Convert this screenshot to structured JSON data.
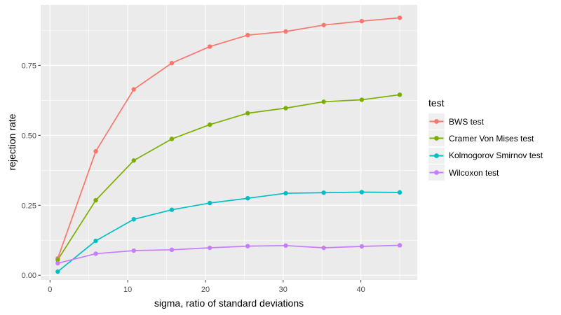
{
  "chart_data": {
    "type": "line",
    "title": "",
    "xlabel": "sigma, ratio of standard deviations",
    "ylabel": "rejection rate",
    "x": [
      1,
      5.89,
      10.78,
      15.67,
      20.56,
      25.44,
      30.33,
      35.22,
      40.11,
      45
    ],
    "series": [
      {
        "name": "BWS test",
        "color": "#F8766D",
        "values": [
          0.06,
          0.443,
          0.664,
          0.758,
          0.817,
          0.858,
          0.871,
          0.894,
          0.908,
          0.92
        ]
      },
      {
        "name": "Cramer Von Mises test",
        "color": "#7CAE00",
        "values": [
          0.055,
          0.268,
          0.41,
          0.487,
          0.538,
          0.579,
          0.597,
          0.62,
          0.627,
          0.645
        ]
      },
      {
        "name": "Kolmogorov Smirnov test",
        "color": "#00BFC4",
        "values": [
          0.013,
          0.123,
          0.2,
          0.234,
          0.258,
          0.275,
          0.293,
          0.295,
          0.297,
          0.296
        ]
      },
      {
        "name": "Wilcoxon test",
        "color": "#C77CFF",
        "values": [
          0.043,
          0.077,
          0.088,
          0.091,
          0.098,
          0.104,
          0.106,
          0.098,
          0.103,
          0.107
        ]
      }
    ],
    "legend": {
      "title": "test",
      "position": "right"
    },
    "x_ticks": {
      "major": [
        0,
        10,
        20,
        30,
        40
      ],
      "minor": [
        5,
        15,
        25,
        35,
        45
      ],
      "labels": [
        "0",
        "10",
        "20",
        "30",
        "40"
      ]
    },
    "y_ticks": {
      "major": [
        0,
        0.25,
        0.5,
        0.75
      ],
      "minor": [
        0.125,
        0.375,
        0.625,
        0.875
      ],
      "labels": [
        "0.00",
        "0.25",
        "0.50",
        "0.75"
      ]
    },
    "xlim": [
      -1.2,
      47.25
    ],
    "ylim": [
      -0.017,
      0.966
    ],
    "grid": true,
    "style": {
      "background": "#FFFFFF",
      "panel_bg": "#EBEBEB",
      "grid_color": "#FFFFFF",
      "tick_color": "#333333",
      "tick_label_color": "#4D4D4D",
      "axis_title_color": "#000000",
      "legend_key_bg": "#F0F0F0"
    }
  }
}
